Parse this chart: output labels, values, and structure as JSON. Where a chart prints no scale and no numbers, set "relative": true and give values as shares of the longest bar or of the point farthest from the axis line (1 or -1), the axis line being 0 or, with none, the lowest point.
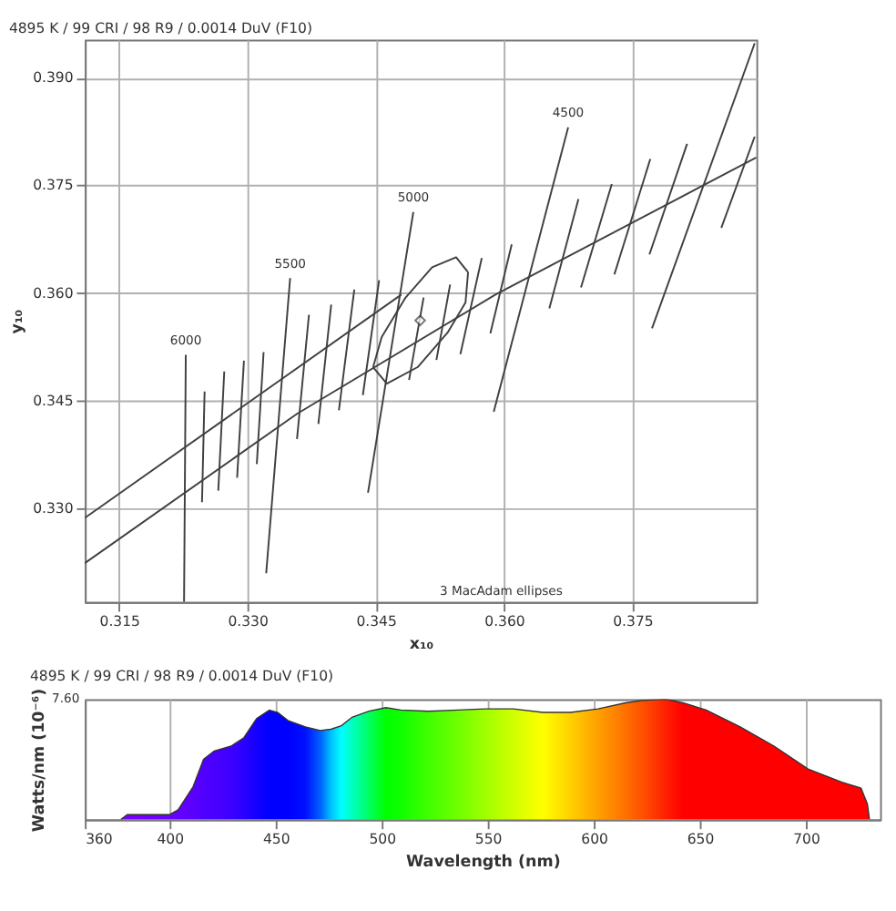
{
  "chart_data": [
    {
      "type": "line",
      "title": "4895 K / 99 CRI / 98 R9 / 0.0014 DuV (F10)",
      "xlabel": "x₁₀",
      "ylabel": "y₁₀",
      "xlim": [
        0.311,
        0.3895
      ],
      "ylim": [
        0.317,
        0.3953
      ],
      "xticks": [
        0.315,
        {
          "value": 0.33,
          "label": "0.330"
        },
        0.345,
        {
          "value": 0.36,
          "label": "0.360"
        },
        0.375
      ],
      "yticks": [
        {
          "value": 0.33,
          "label": "0.330"
        },
        0.345,
        {
          "value": 0.36,
          "label": "0.360"
        },
        0.375,
        {
          "value": 0.39,
          "label": "0.390"
        }
      ],
      "grid": true,
      "line_style": "solid",
      "annotations": [
        "3 MacAdam ellipses"
      ],
      "series": [
        {
          "color": "#404040",
          "x": [
            0.311,
            0.3358,
            0.359,
            0.3895
          ],
          "values": [
            0.3224,
            0.3432,
            0.3598,
            0.3789
          ]
        },
        {
          "color": "#404040",
          "x": [
            0.311,
            0.348
          ],
          "values": [
            0.3287,
            0.3598
          ]
        },
        {
          "name": "6000",
          "color": "#404040",
          "x": [
            0.3228,
            0.3226
          ],
          "values": [
            0.3514,
            0.317
          ]
        },
        {
          "color": "#404040",
          "x": [
            0.325,
            0.3247
          ],
          "values": [
            0.3463,
            0.3309
          ]
        },
        {
          "color": "#404040",
          "x": [
            0.3273,
            0.3266
          ],
          "values": [
            0.3491,
            0.3325
          ]
        },
        {
          "color": "#404040",
          "x": [
            0.3296,
            0.3288
          ],
          "values": [
            0.3506,
            0.3343
          ]
        },
        {
          "color": "#404040",
          "x": [
            0.3319,
            0.3311
          ],
          "values": [
            0.3518,
            0.3362
          ]
        },
        {
          "name": "5500",
          "color": "#404040",
          "x": [
            0.335,
            0.3322
          ],
          "values": [
            0.3621,
            0.321
          ]
        },
        {
          "color": "#404040",
          "x": [
            0.3372,
            0.3358
          ],
          "values": [
            0.357,
            0.3397
          ]
        },
        {
          "color": "#404040",
          "x": [
            0.3398,
            0.3383
          ],
          "values": [
            0.3584,
            0.3418
          ]
        },
        {
          "color": "#404040",
          "x": [
            0.3425,
            0.3407
          ],
          "values": [
            0.3605,
            0.3437
          ]
        },
        {
          "color": "#404040",
          "x": [
            0.3454,
            0.3435
          ],
          "values": [
            0.3618,
            0.3458
          ]
        },
        {
          "name": "5000",
          "color": "#404040",
          "x": [
            0.3494,
            0.3441
          ],
          "values": [
            0.3713,
            0.3322
          ]
        },
        {
          "color": "#404040",
          "x": [
            0.3506,
            0.3489
          ],
          "values": [
            0.3594,
            0.3479
          ]
        },
        {
          "color": "#404040",
          "x": [
            0.3537,
            0.3521
          ],
          "values": [
            0.3612,
            0.3507
          ]
        },
        {
          "color": "#404040",
          "x": [
            0.3574,
            0.3549
          ],
          "values": [
            0.3649,
            0.3515
          ]
        },
        {
          "color": "#404040",
          "x": [
            0.3609,
            0.3584
          ],
          "values": [
            0.3668,
            0.3544
          ]
        },
        {
          "name": "4500",
          "color": "#404040",
          "x": [
            0.3675,
            0.3588
          ],
          "values": [
            0.3831,
            0.3435
          ]
        },
        {
          "color": "#404040",
          "x": [
            0.3687,
            0.3653
          ],
          "values": [
            0.3731,
            0.3579
          ]
        },
        {
          "color": "#404040",
          "x": [
            0.3726,
            0.369
          ],
          "values": [
            0.3752,
            0.3608
          ]
        },
        {
          "color": "#404040",
          "x": [
            0.3771,
            0.3729
          ],
          "values": [
            0.3787,
            0.3626
          ]
        },
        {
          "color": "#404040",
          "x": [
            0.3814,
            0.377
          ],
          "values": [
            0.3808,
            0.3654
          ]
        },
        {
          "color": "#404040",
          "x": [
            0.3893,
            0.3773
          ],
          "values": [
            0.3948,
            0.3551
          ]
        },
        {
          "color": "#404040",
          "x": [
            0.3893,
            0.3854
          ],
          "values": [
            0.3818,
            0.3691
          ]
        },
        {
          "color": "#404040",
          "x": [
            0.3447,
            0.3457,
            0.3485,
            0.3516,
            0.3544,
            0.3558
          ],
          "values": [
            0.3497,
            0.3539,
            0.3594,
            0.3636,
            0.365,
            0.3629
          ]
        },
        {
          "color": "#404040",
          "x": [
            0.3447,
            0.3463,
            0.3499,
            0.3534,
            0.3555,
            0.3558
          ],
          "values": [
            0.3497,
            0.3474,
            0.3497,
            0.3545,
            0.3587,
            0.3629
          ]
        },
        {
          "type": "scatter",
          "marker": "diamond",
          "color": "#404040",
          "x": [
            0.3502
          ],
          "values": [
            0.3562
          ]
        }
      ]
    },
    {
      "type": "area",
      "title": "4895 K / 99 CRI / 98 R9 / 0.0014 DuV (F10)",
      "xlabel": "Wavelength (nm)",
      "ylabel": "Watts/nm (10⁻⁶)",
      "relative": true,
      "xlim": [
        360,
        735
      ],
      "xticks": [
        360,
        400,
        450,
        500,
        550,
        600,
        650,
        700
      ],
      "grid": "x",
      "annotations": [
        "7.60"
      ],
      "series": [
        {
          "colors": [
            "#7a00ff",
            "#7a00ff",
            "#6a00ff",
            "#6600ff",
            "#5a00ff",
            "#5000ff",
            "#4a00ff",
            "#3c00ff",
            "#2a00ff",
            "#1400ff",
            "#0000ff",
            "#0000ff",
            "#0000ff",
            "#0010ff",
            "#0060ff",
            "#00c0ff",
            "#00ffff",
            "#00ffc0",
            "#00ff60",
            "#00ff00",
            "#10ff00",
            "#40ff00",
            "#70ff00",
            "#a0ff00",
            "#d0ff00",
            "#ffff00",
            "#ffd000",
            "#ffa000",
            "#ff7000",
            "#ff5000",
            "#ff2000",
            "#ff0000",
            "#ff0000",
            "#ff0000",
            "#ff0000",
            "#ff0000",
            "#ff0000",
            "#ff0000",
            "#ff0000",
            "#ff0000"
          ],
          "x": [
            377,
            380,
            400,
            404,
            411,
            416,
            421,
            429,
            435,
            441,
            447,
            451,
            456,
            464,
            471,
            476,
            481,
            486,
            494,
            502,
            509,
            522,
            536,
            549,
            562,
            576,
            589,
            602,
            615,
            623,
            634,
            642,
            653,
            669,
            685,
            701,
            717,
            726,
            729,
            730
          ],
          "values": [
            0,
            0.04,
            0.04,
            0.08,
            0.27,
            0.5,
            0.57,
            0.61,
            0.68,
            0.84,
            0.91,
            0.89,
            0.82,
            0.77,
            0.74,
            0.75,
            0.78,
            0.85,
            0.9,
            0.93,
            0.91,
            0.9,
            0.91,
            0.92,
            0.92,
            0.89,
            0.89,
            0.92,
            0.97,
            0.99,
            1,
            0.97,
            0.91,
            0.77,
            0.61,
            0.42,
            0.31,
            0.26,
            0.13,
            0
          ]
        }
      ]
    }
  ]
}
